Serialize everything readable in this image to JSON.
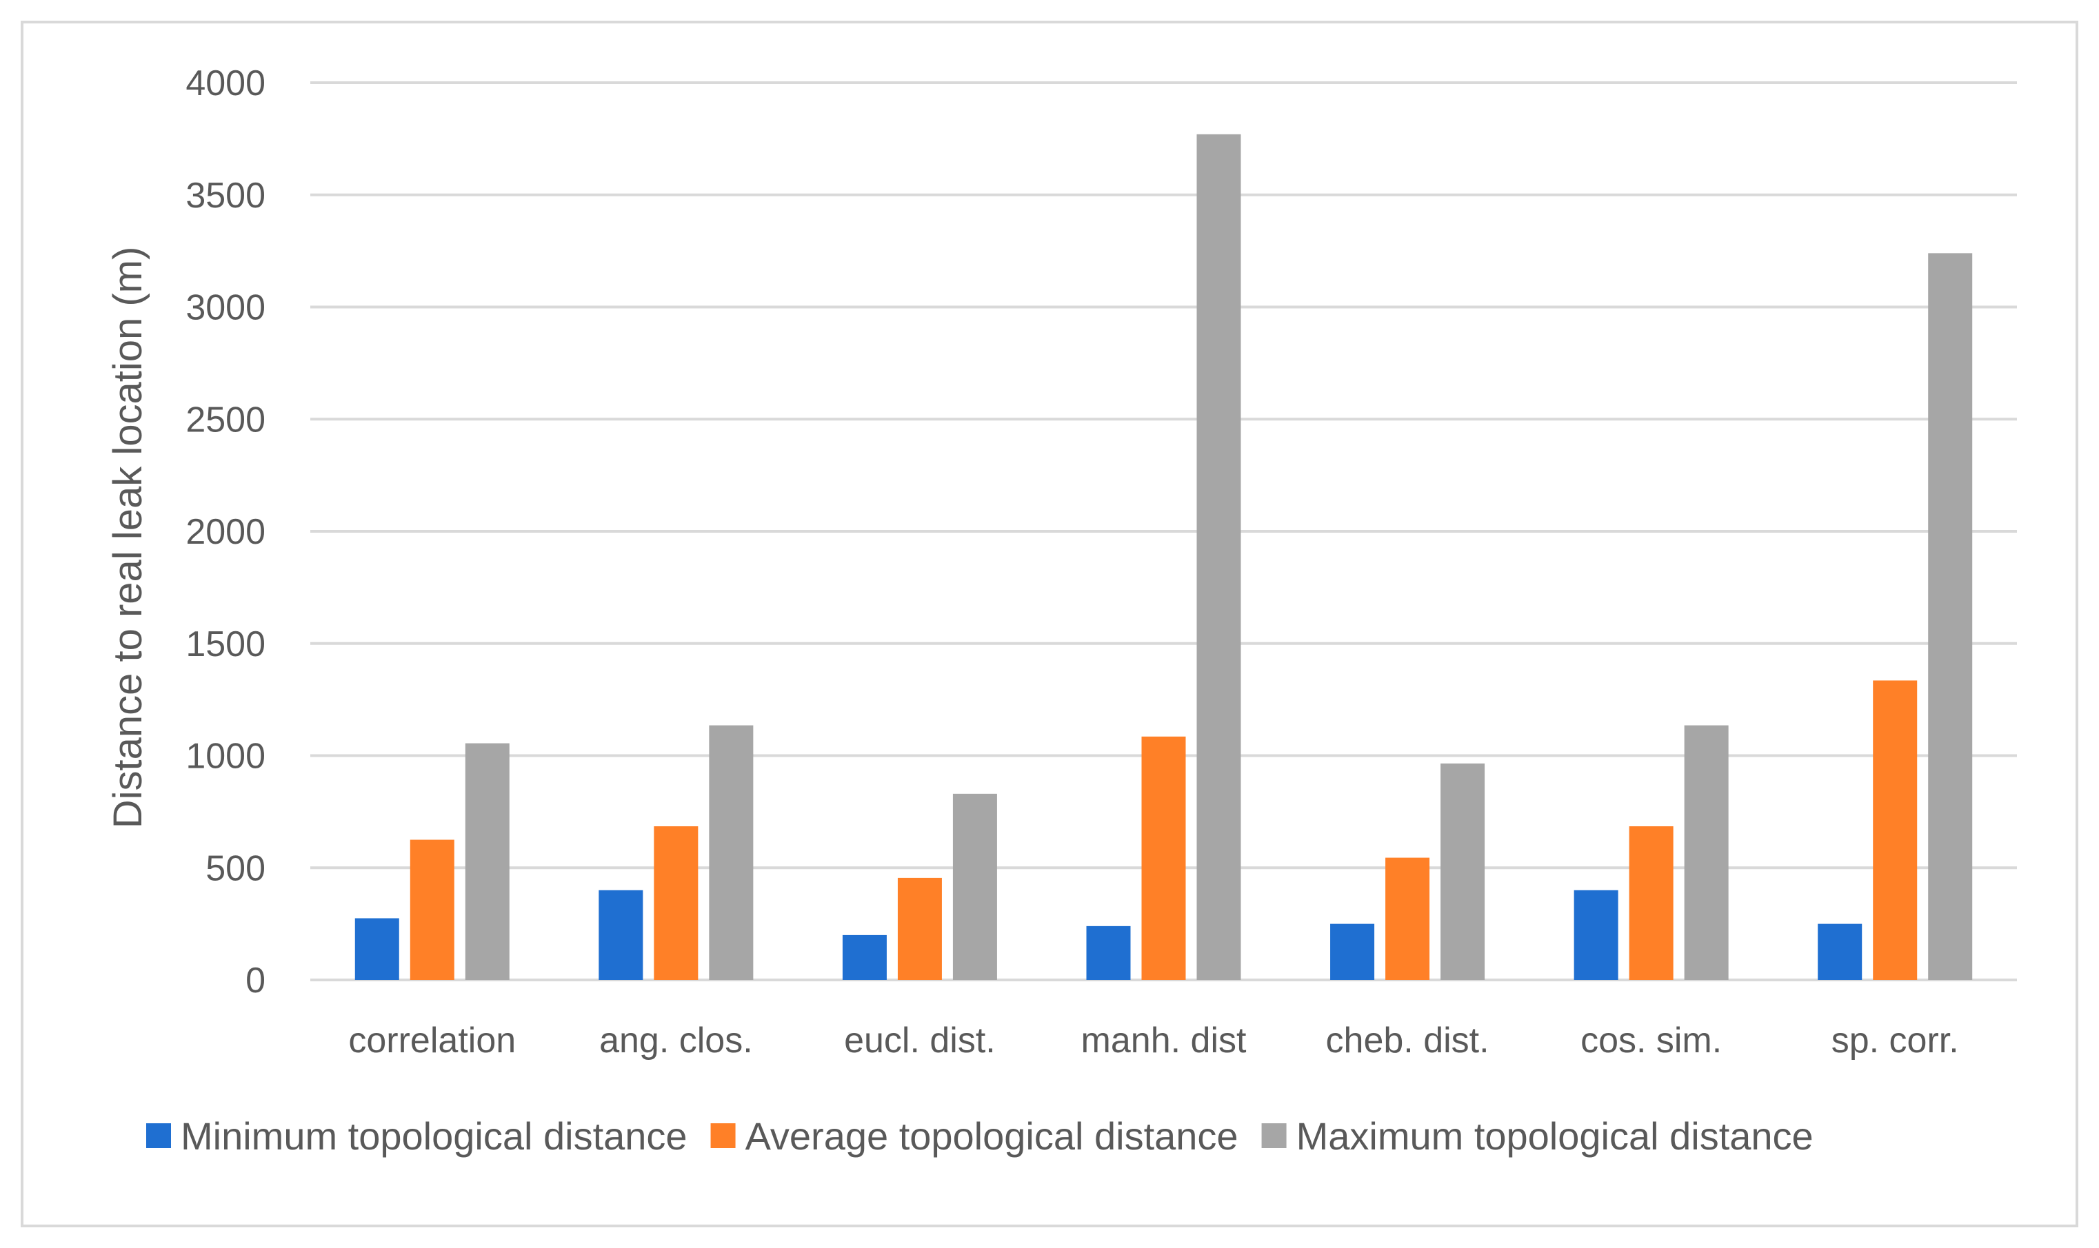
{
  "chart_data": {
    "type": "bar",
    "title": "",
    "xlabel": "",
    "ylabel": "Distance to real leak location (m)",
    "ylim": [
      0,
      4000
    ],
    "yticks": [
      0,
      500,
      1000,
      1500,
      2000,
      2500,
      3000,
      3500,
      4000
    ],
    "grid": true,
    "legend_position": "bottom",
    "categories": [
      "correlation",
      "ang. clos.",
      "eucl. dist.",
      "manh. dist",
      "cheb. dist.",
      "cos. sim.",
      "sp. corr."
    ],
    "series": [
      {
        "name": "Minimum topological distance",
        "color": "#1f6fd1",
        "values": [
          275,
          400,
          200,
          240,
          250,
          400,
          250
        ]
      },
      {
        "name": "Average topological distance",
        "color": "#ff8027",
        "values": [
          625,
          685,
          455,
          1085,
          545,
          685,
          1335
        ]
      },
      {
        "name": "Maximum topological distance",
        "color": "#a6a6a6",
        "values": [
          1055,
          1135,
          830,
          3770,
          965,
          1135,
          3240
        ]
      }
    ],
    "gridline_color": "#d9d9d9",
    "text_color": "#595959"
  }
}
